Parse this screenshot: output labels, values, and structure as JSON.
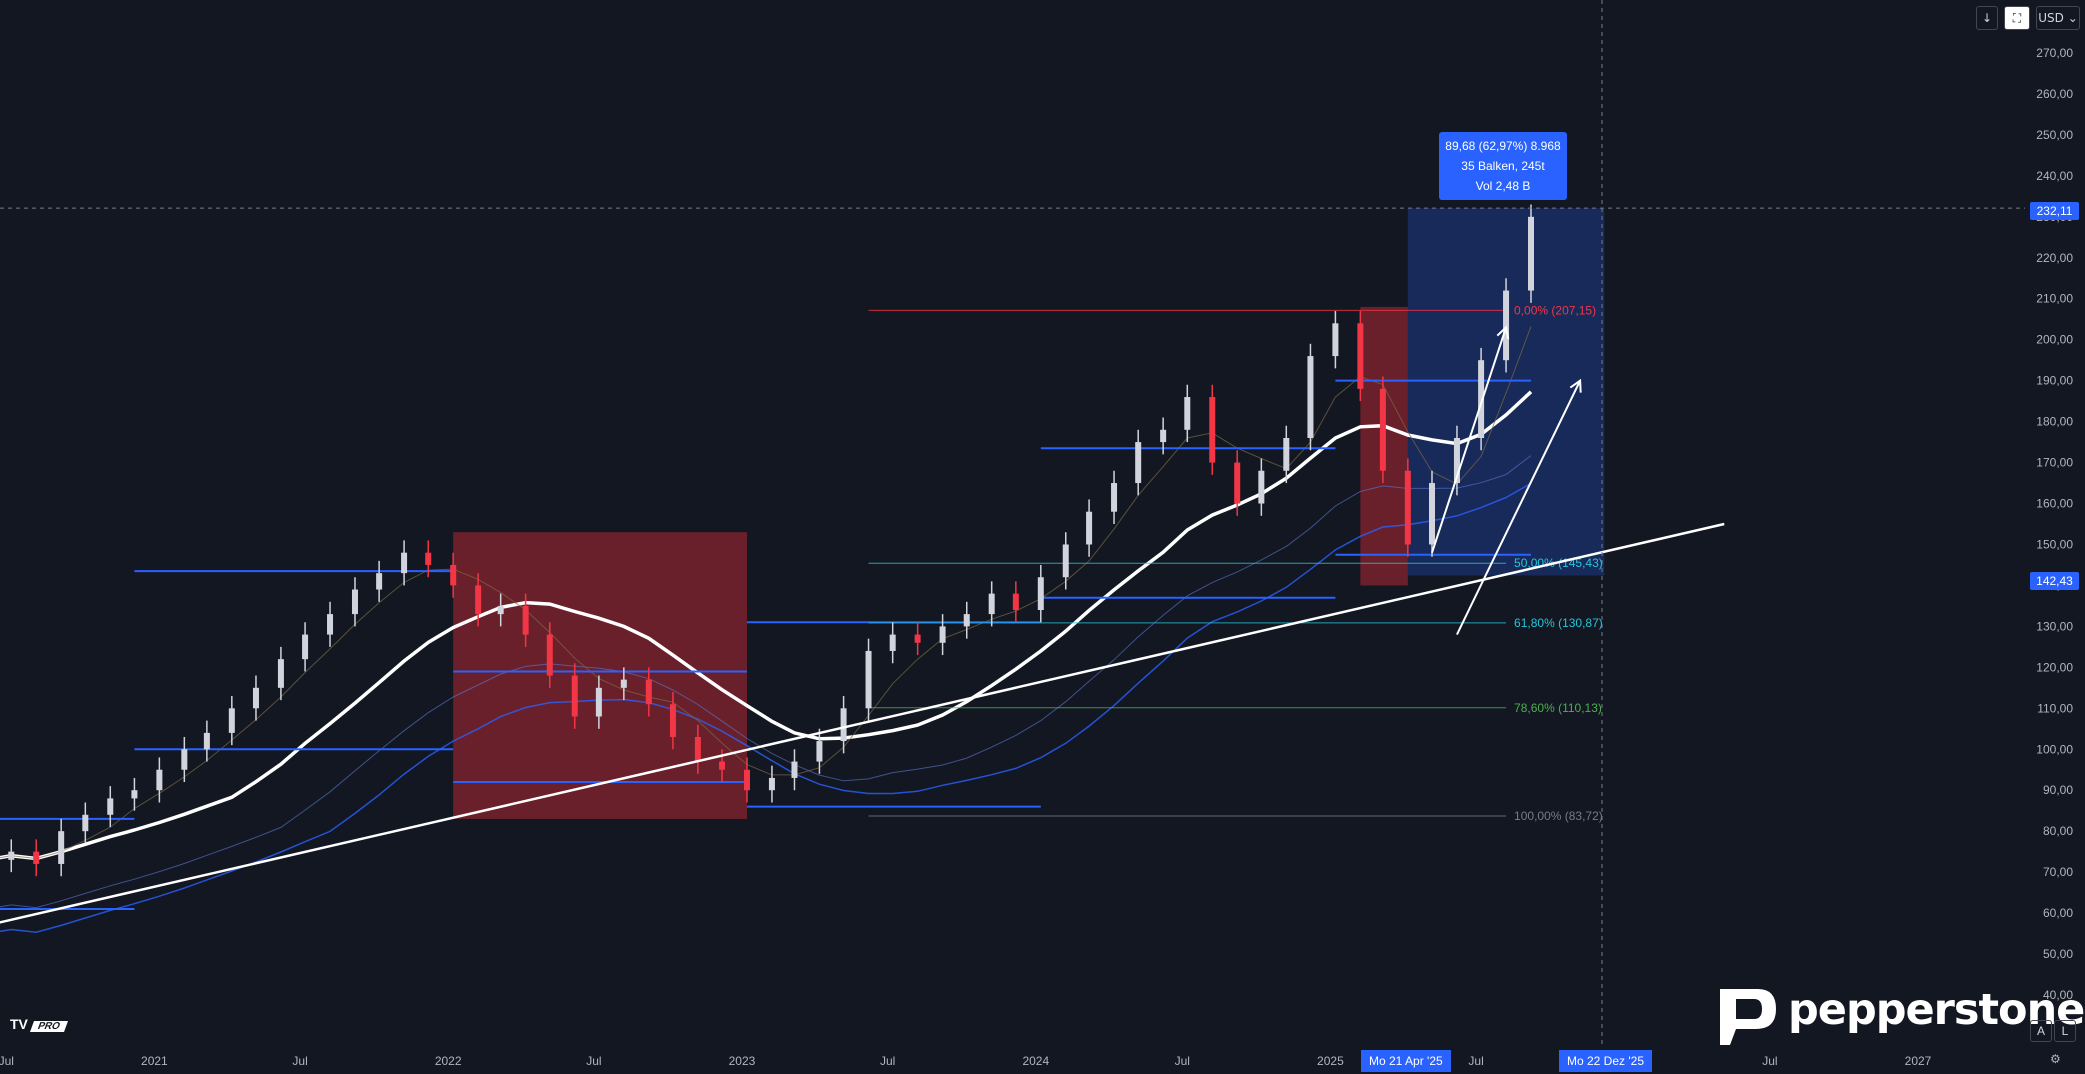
{
  "toolbar": {
    "download_icon": "arrow-down-icon",
    "screenshot_icon": "camera-icon",
    "currency": "USD"
  },
  "stat_box": {
    "line1": "89,68 (62,97%) 8.968",
    "line2": "35 Balken, 245t",
    "line3": "Vol 2,48 B"
  },
  "price_tags": {
    "current": "232,11",
    "lower": "142,43"
  },
  "date_tags": {
    "start": "Mo 21 Apr '25",
    "end": "Mo 22 Dez '25"
  },
  "branding": {
    "tradingview": "TV",
    "tv_pro": "PRO",
    "broker": "pepperstone"
  },
  "corner_buttons": {
    "auto": "A",
    "log": "L",
    "settings_icon": "gear-icon"
  },
  "colors": {
    "background": "#131722",
    "up_candle": "#d1d4dc",
    "down_candle": "#f23645",
    "blue_level": "#2962ff",
    "red_zone": "#b22833",
    "blue_zone": "#2962ff",
    "trendline": "#ffffff",
    "fib_red": "#f23645",
    "fib_green": "#4caf50",
    "fib_teal": "#26c6da"
  },
  "chart_data": {
    "type": "candlestick",
    "y_axis": {
      "ticks": [
        "270,00",
        "260,00",
        "250,00",
        "240,00",
        "230,00",
        "220,00",
        "210,00",
        "200,00",
        "190,00",
        "180,00",
        "170,00",
        "160,00",
        "150,00",
        "140,00",
        "130,00",
        "120,00",
        "110,00",
        "100,00",
        "90,00",
        "80,00",
        "70,00",
        "60,00",
        "50,00",
        "40,00"
      ],
      "ylim": [
        35,
        277
      ]
    },
    "x_axis": {
      "ticks": [
        "Jul",
        "2021",
        "Jul",
        "2022",
        "Jul",
        "2023",
        "Jul",
        "2024",
        "Jul",
        "2025",
        "Jul",
        "Jul",
        "2027"
      ]
    },
    "series_close": [
      [
        "2020-06",
        73
      ],
      [
        "2020-07",
        75
      ],
      [
        "2020-08",
        72
      ],
      [
        "2020-09",
        80
      ],
      [
        "2020-10",
        84
      ],
      [
        "2020-11",
        88
      ],
      [
        "2020-12",
        90
      ],
      [
        "2021-01",
        95
      ],
      [
        "2021-02",
        100
      ],
      [
        "2021-03",
        104
      ],
      [
        "2021-04",
        110
      ],
      [
        "2021-05",
        115
      ],
      [
        "2021-06",
        122
      ],
      [
        "2021-07",
        128
      ],
      [
        "2021-08",
        133
      ],
      [
        "2021-09",
        139
      ],
      [
        "2021-10",
        143
      ],
      [
        "2021-11",
        148
      ],
      [
        "2021-12",
        145
      ],
      [
        "2022-01",
        140
      ],
      [
        "2022-02",
        133
      ],
      [
        "2022-03",
        135
      ],
      [
        "2022-04",
        128
      ],
      [
        "2022-05",
        118
      ],
      [
        "2022-06",
        108
      ],
      [
        "2022-07",
        115
      ],
      [
        "2022-08",
        117
      ],
      [
        "2022-09",
        111
      ],
      [
        "2022-10",
        103
      ],
      [
        "2022-11",
        97
      ],
      [
        "2022-12",
        95
      ],
      [
        "2023-01",
        90
      ],
      [
        "2023-02",
        93
      ],
      [
        "2023-03",
        97
      ],
      [
        "2023-04",
        102
      ],
      [
        "2023-05",
        110
      ],
      [
        "2023-06",
        124
      ],
      [
        "2023-07",
        128
      ],
      [
        "2023-08",
        126
      ],
      [
        "2023-09",
        130
      ],
      [
        "2023-10",
        133
      ],
      [
        "2023-11",
        138
      ],
      [
        "2023-12",
        134
      ],
      [
        "2024-01",
        142
      ],
      [
        "2024-02",
        150
      ],
      [
        "2024-03",
        158
      ],
      [
        "2024-04",
        165
      ],
      [
        "2024-05",
        175
      ],
      [
        "2024-06",
        178
      ],
      [
        "2024-07",
        186
      ],
      [
        "2024-08",
        170
      ],
      [
        "2024-09",
        160
      ],
      [
        "2024-10",
        168
      ],
      [
        "2024-11",
        176
      ],
      [
        "2024-12",
        196
      ],
      [
        "2025-01",
        204
      ],
      [
        "2025-02",
        188
      ],
      [
        "2025-03",
        168
      ],
      [
        "2025-04",
        150
      ],
      [
        "2025-05",
        165
      ],
      [
        "2025-06",
        176
      ],
      [
        "2025-07",
        195
      ],
      [
        "2025-08",
        212
      ],
      [
        "2025-09",
        230
      ]
    ],
    "horizontal_levels": [
      {
        "price": 143.5,
        "from": "2020-12",
        "to": "2022-01",
        "color": "blue"
      },
      {
        "price": 100.0,
        "from": "2020-12",
        "to": "2022-01",
        "color": "blue"
      },
      {
        "price": 83.0,
        "from": "2020-06",
        "to": "2020-12",
        "color": "blue"
      },
      {
        "price": 61.0,
        "from": "2020-06",
        "to": "2020-12",
        "color": "blue"
      },
      {
        "price": 119.0,
        "from": "2022-01",
        "to": "2023-01",
        "color": "blue"
      },
      {
        "price": 92.0,
        "from": "2022-01",
        "to": "2023-01",
        "color": "blue"
      },
      {
        "price": 131.0,
        "from": "2023-01",
        "to": "2024-01",
        "color": "blue"
      },
      {
        "price": 86.0,
        "from": "2023-01",
        "to": "2024-01",
        "color": "blue"
      },
      {
        "price": 173.5,
        "from": "2024-01",
        "to": "2025-01",
        "color": "blue"
      },
      {
        "price": 137.0,
        "from": "2024-01",
        "to": "2025-01",
        "color": "blue"
      },
      {
        "price": 190.0,
        "from": "2025-01",
        "to": "2025-09",
        "color": "blue"
      },
      {
        "price": 147.5,
        "from": "2025-01",
        "to": "2025-09",
        "color": "blue"
      }
    ],
    "fibonacci": [
      {
        "label": "0,00% (207,15)",
        "price": 207.15,
        "color": "red"
      },
      {
        "label": "50,00% (145,43)",
        "price": 145.43,
        "color": "teal"
      },
      {
        "label": "61,80% (130,87)",
        "price": 130.87,
        "color": "teal"
      },
      {
        "label": "78,60% (110,13)",
        "price": 110.13,
        "color": "green"
      },
      {
        "label": "100,00% (83,72)",
        "price": 83.72,
        "color": "gray"
      }
    ],
    "zones": [
      {
        "type": "correction",
        "from": "2022-01",
        "to": "2023-01",
        "top": 153,
        "bottom": 83,
        "color": "red"
      },
      {
        "type": "correction",
        "from": "2025-02",
        "to": "2025-04",
        "top": 208,
        "bottom": 140,
        "color": "red"
      },
      {
        "type": "measure",
        "from": "2025-04",
        "to": "2025-12",
        "top": 232.11,
        "bottom": 142.43,
        "color": "blue"
      }
    ],
    "trendline": {
      "from": [
        "2020-06",
        57
      ],
      "to": [
        "2025-12",
        155
      ]
    },
    "arrows": [
      {
        "from": [
          "2025-05",
          148
        ],
        "to": [
          "2025-08",
          203
        ]
      },
      {
        "from": [
          "2025-06",
          128
        ],
        "to": [
          "2025-11",
          190
        ]
      }
    ]
  }
}
